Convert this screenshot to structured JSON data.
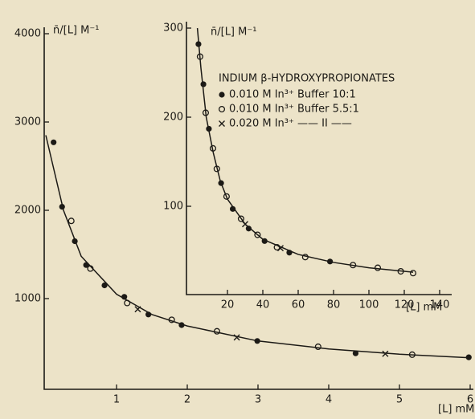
{
  "chart_data": [
    {
      "type": "scatter",
      "ylabel": "n̄/[L] M⁻¹",
      "xlabel": "[L] mM",
      "xlim": [
        0,
        6
      ],
      "xticks": [
        1,
        2,
        3,
        4,
        5,
        6
      ],
      "ylim": [
        0,
        4000
      ],
      "yticks": [
        1000,
        2000,
        3000,
        4000
      ],
      "grid": false,
      "series": [
        {
          "marker": "filled",
          "color": "#1c1a16",
          "x": [
            0.11,
            0.23,
            0.41,
            0.57,
            0.83,
            1.11,
            1.45,
            1.92,
            2.99,
            4.38,
            5.98
          ],
          "values": [
            2770,
            2040,
            1650,
            1380,
            1150,
            1020,
            820,
            700,
            520,
            380,
            335
          ]
        },
        {
          "marker": "open",
          "color": "#1c1a16",
          "x": [
            0.36,
            0.63,
            1.15,
            1.78,
            2.42,
            3.85,
            5.18
          ],
          "values": [
            1880,
            1340,
            950,
            760,
            630,
            455,
            365
          ]
        },
        {
          "marker": "cross",
          "color": "#1c1a16",
          "x": [
            1.3,
            2.7,
            4.8
          ],
          "values": [
            880,
            560,
            375
          ]
        },
        {
          "marker": "line",
          "color": "#1c1a16",
          "x": [
            0,
            0.25,
            0.5,
            1,
            1.5,
            2,
            3,
            4,
            5,
            6
          ],
          "values": [
            2850,
            2000,
            1480,
            1050,
            820,
            690,
            520,
            430,
            370,
            330
          ]
        }
      ]
    },
    {
      "type": "scatter",
      "ylabel": "n̄/[L] M⁻¹",
      "xlabel": "[L] mM",
      "annotation": "INDIUM β-HYDROXYPROPIONATES",
      "xlim": [
        0,
        145
      ],
      "xticks": [
        20,
        40,
        60,
        80,
        100,
        120,
        140
      ],
      "ylim": [
        0,
        300
      ],
      "yticks": [
        100,
        200,
        300
      ],
      "grid": false,
      "series": [
        {
          "name": "0.010 M In³⁺ Buffer 10:1",
          "marker": "filled",
          "color": "#1c1a16",
          "x": [
            3.6,
            6.4,
            9.5,
            16.4,
            23,
            32,
            41,
            55,
            78
          ],
          "values": [
            282,
            237,
            187,
            126,
            97,
            75,
            61,
            48,
            38
          ]
        },
        {
          "name": "0.010 M In³⁺ Buffer 5.5:1",
          "marker": "open",
          "color": "#1c1a16",
          "x": [
            4.5,
            7.7,
            11.8,
            14,
            19.5,
            27.7,
            37,
            48,
            64,
            91,
            105,
            118,
            125
          ],
          "values": [
            268,
            205,
            165,
            142,
            111,
            86,
            68,
            54,
            43,
            34,
            31,
            27,
            25
          ]
        },
        {
          "name": "0.020 M In³⁺ —— II ——",
          "marker": "cross",
          "color": "#1c1a16",
          "x": [
            30,
            50
          ],
          "values": [
            80,
            53
          ]
        },
        {
          "marker": "line",
          "color": "#1c1a16",
          "x": [
            3,
            5,
            8,
            12,
            16,
            20,
            30,
            40,
            60,
            80,
            100,
            125
          ],
          "values": [
            300,
            255,
            200,
            160,
            128,
            108,
            80,
            63,
            46,
            37,
            31,
            26
          ]
        }
      ]
    }
  ]
}
